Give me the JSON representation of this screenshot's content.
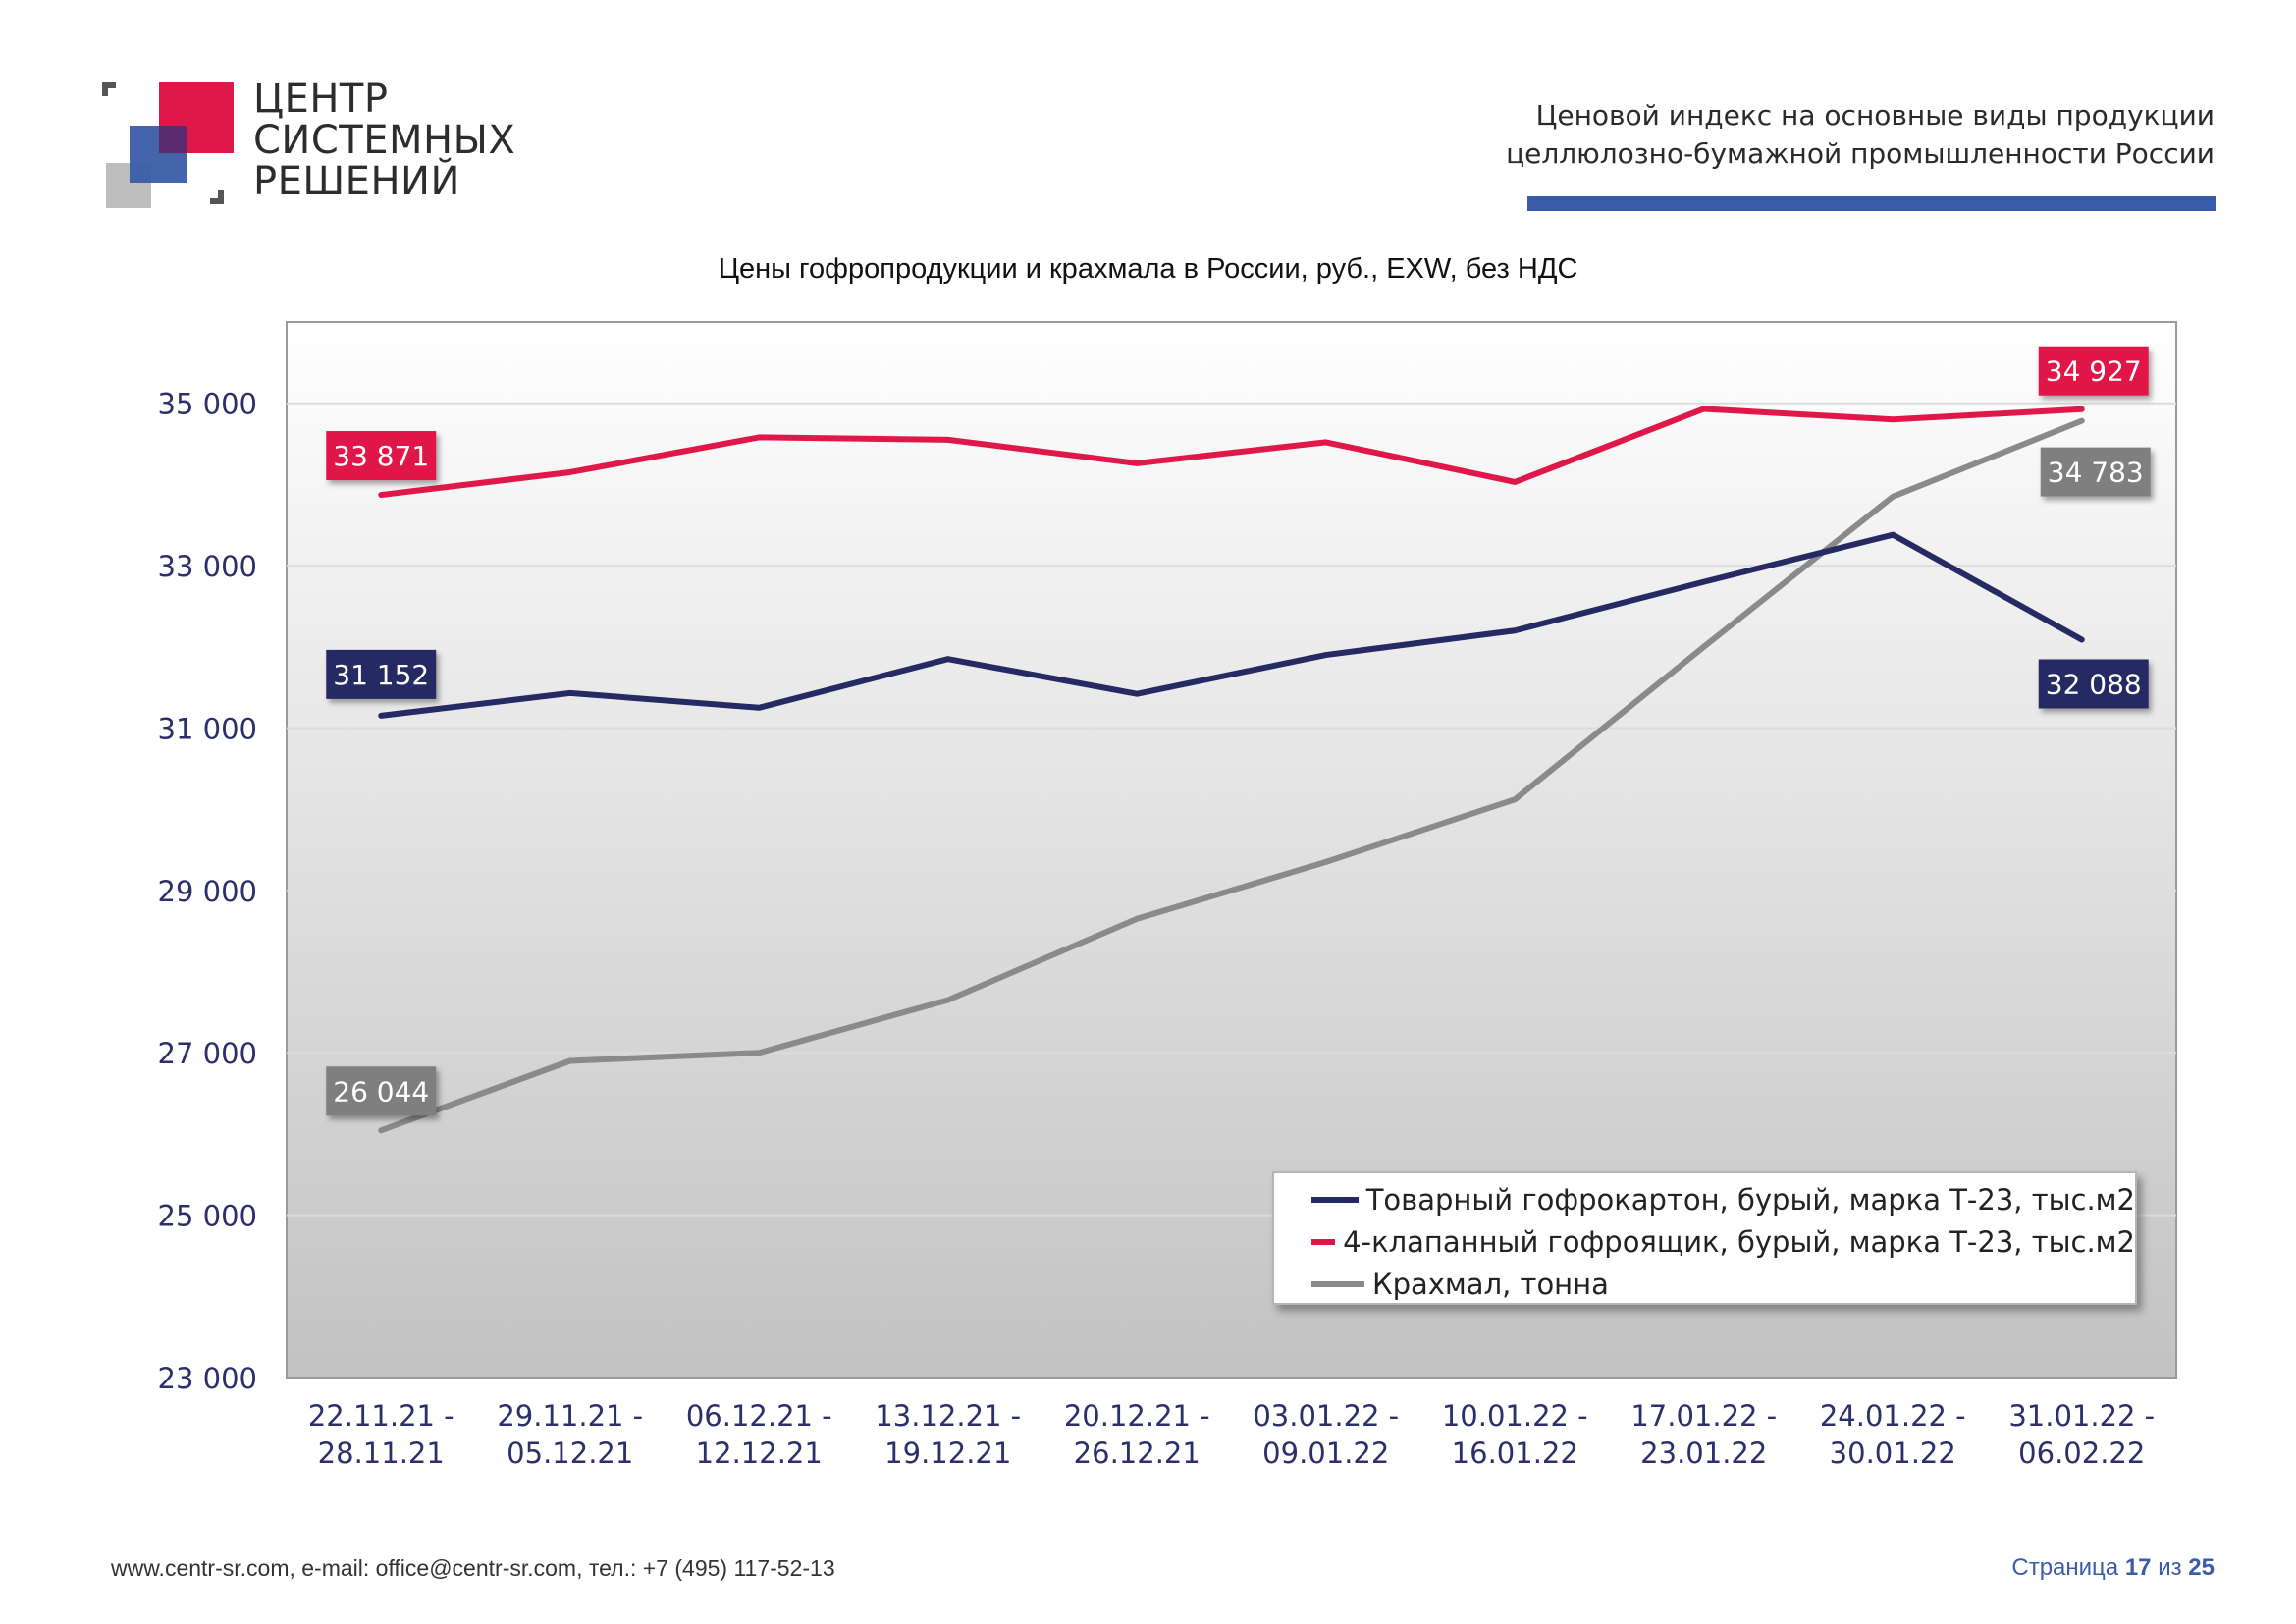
{
  "logo": {
    "line1": "ЦЕНТР",
    "line2": "СИСТЕМНЫХ",
    "line3": "РЕШЕНИЙ"
  },
  "header": {
    "line1": "Ценовой индекс на основные виды продукции",
    "line2": "целлюлозно-бумажной промышленности России"
  },
  "colors": {
    "navy": "#252a63",
    "red": "#e0184a",
    "gray": "#8a8a8a",
    "accent_blue": "#3a5ca8"
  },
  "chart_data": {
    "type": "line",
    "title": "Цены гофропродукции и крахмала в России, руб., EXW, без НДС",
    "categories": [
      [
        "22.11.21 -",
        "28.11.21"
      ],
      [
        "29.11.21 -",
        "05.12.21"
      ],
      [
        "06.12.21 -",
        "12.12.21"
      ],
      [
        "13.12.21 -",
        "19.12.21"
      ],
      [
        "20.12.21 -",
        "26.12.21"
      ],
      [
        "03.01.22 -",
        "09.01.22"
      ],
      [
        "10.01.22 -",
        "16.01.22"
      ],
      [
        "17.01.22 -",
        "23.01.22"
      ],
      [
        "24.01.22 -",
        "30.01.22"
      ],
      [
        "31.01.22 -",
        "06.02.22"
      ]
    ],
    "ylim": [
      23000,
      36000
    ],
    "yticks": [
      23000,
      25000,
      27000,
      29000,
      31000,
      33000,
      35000
    ],
    "ytick_labels": [
      "23 000",
      "25 000",
      "27 000",
      "29 000",
      "31 000",
      "33 000",
      "35 000"
    ],
    "grid": true,
    "legend_position": "bottom-right",
    "series": [
      {
        "name": "Товарный гофрокартон, бурый, марка Т-23, тыс.м2",
        "color": "#252a63",
        "values": [
          31152,
          31430,
          31250,
          31850,
          31420,
          31900,
          32200,
          32800,
          33380,
          32088
        ],
        "first_label": "31 152",
        "last_label": "32 088"
      },
      {
        "name": "4-клапанный гофроящик, бурый, марка Т-23, тыс.м2",
        "color": "#e0184a",
        "values": [
          33871,
          34150,
          34580,
          34550,
          34260,
          34520,
          34030,
          34930,
          34800,
          34927
        ],
        "first_label": "33 871",
        "last_label": "34 927"
      },
      {
        "name": "Крахмал, тонна",
        "color": "#8a8a8a",
        "values": [
          26044,
          26900,
          27000,
          27650,
          28650,
          29350,
          30120,
          32000,
          33850,
          34783
        ],
        "first_label": "26 044",
        "last_label": "34 783"
      }
    ]
  },
  "footer": {
    "contacts": "www.centr-sr.com, e-mail: office@centr-sr.com, тел.: +7 (495) 117-52-13",
    "page_prefix": "Страница",
    "page_current": "17",
    "page_sep": "из",
    "page_total": "25"
  }
}
